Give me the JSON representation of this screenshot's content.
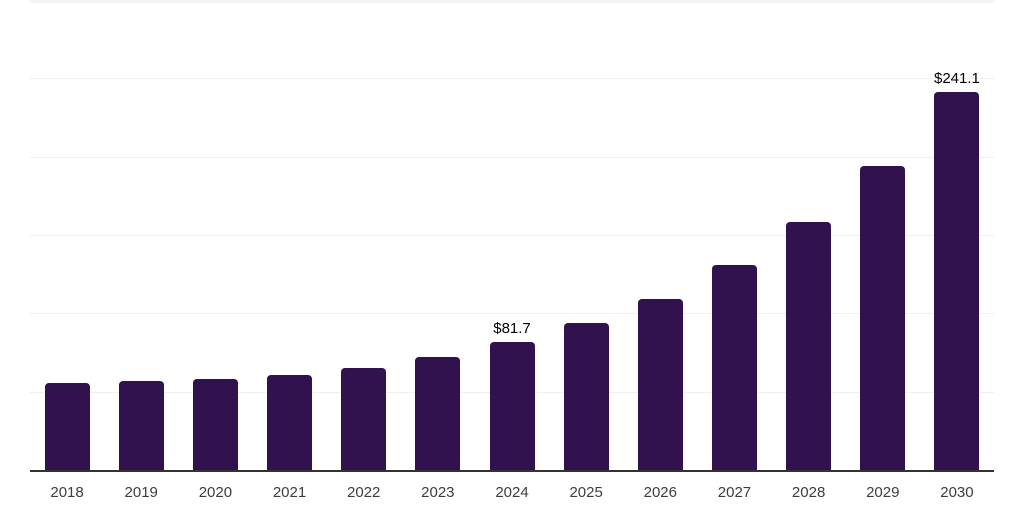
{
  "chart_data": {
    "type": "bar",
    "title": "",
    "categories": [
      "2018",
      "2019",
      "2020",
      "2021",
      "2022",
      "2023",
      "2024",
      "2025",
      "2026",
      "2027",
      "2028",
      "2029",
      "2030"
    ],
    "values": [
      55.6,
      56.9,
      58.1,
      60.7,
      65.2,
      72.2,
      81.7,
      93.9,
      109.3,
      131.0,
      158.5,
      194.2,
      241.1
    ],
    "data_labels": [
      "",
      "",
      "",
      "",
      "",
      "",
      "$81.7",
      "",
      "",
      "",
      "",
      "",
      "$241.1"
    ],
    "xlabel": "",
    "ylabel": "",
    "ylim": [
      0,
      300
    ],
    "gridline_step": 50,
    "grid": "horizontal-only",
    "legend": "none",
    "y_axis_labels_visible": false,
    "colors": {
      "bar": "#31124e",
      "axis_line": "#333333",
      "gridline": "#f0f0f1",
      "gridline_top_clip": "#f3f3f5",
      "tick_label": "#3d3d3d",
      "value_label": "#000000",
      "background": "#ffffff"
    }
  }
}
